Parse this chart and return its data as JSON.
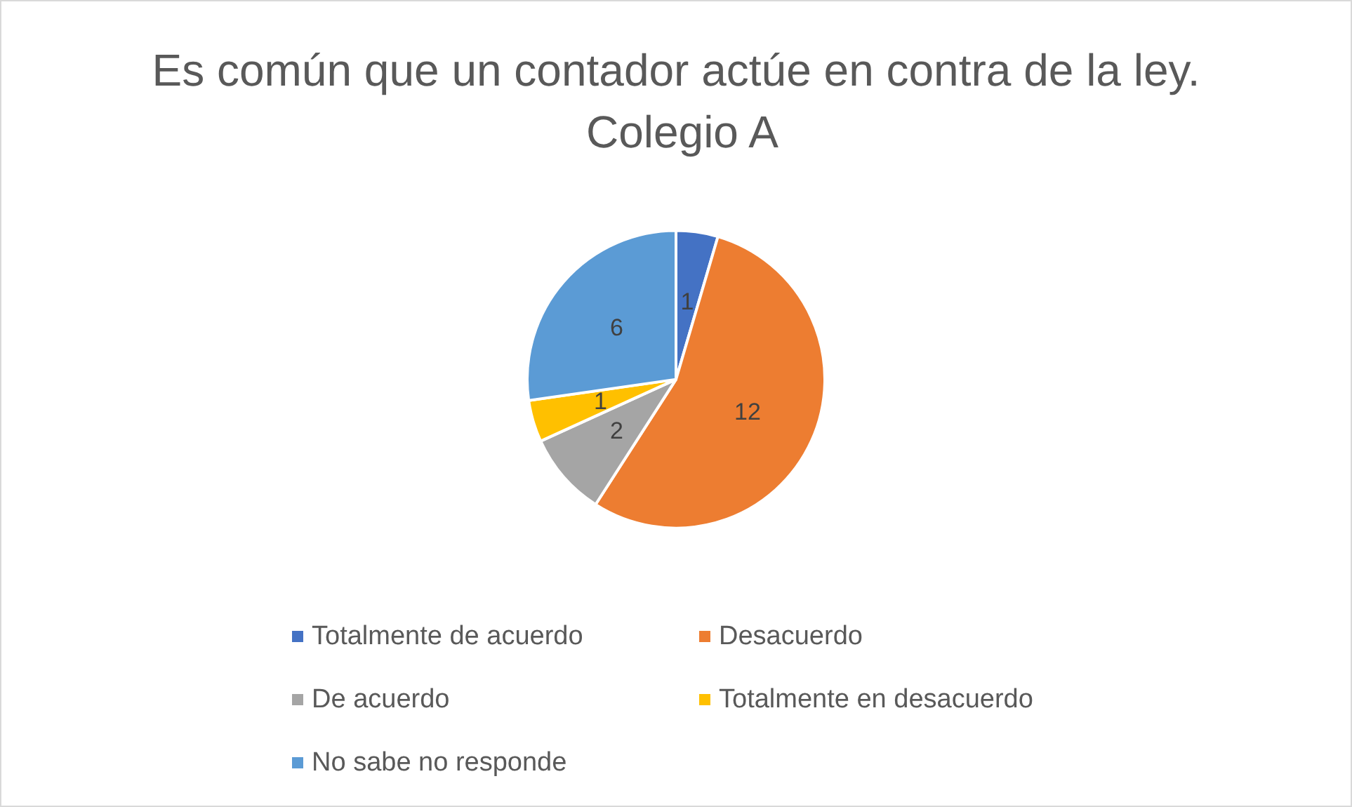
{
  "chart_data": {
    "type": "pie",
    "title": "Es común que un contador actúe en contra de la ley. Colegio A",
    "categories": [
      "Totalmente de acuerdo",
      "Desacuerdo",
      "De acuerdo",
      "Totalmente en desacuerdo",
      "No sabe no responde"
    ],
    "values": [
      1,
      12,
      2,
      1,
      6
    ],
    "colors": [
      "#4472c4",
      "#ed7d31",
      "#a5a5a5",
      "#ffc000",
      "#5b9bd5"
    ],
    "data_labels": true,
    "legend": "bottom"
  }
}
